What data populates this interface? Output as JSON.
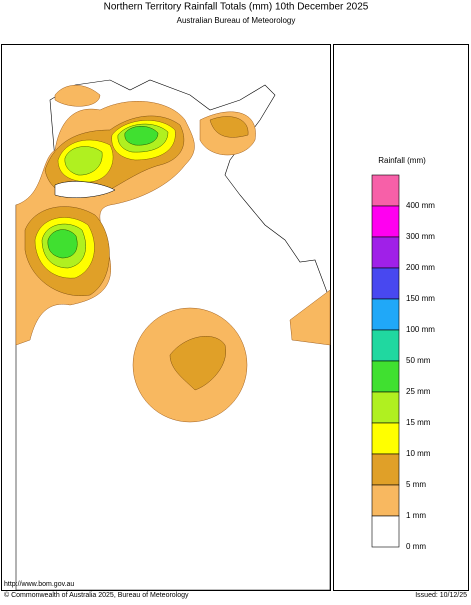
{
  "header": {
    "title": "Northern Territory Rainfall Totals (mm) 10th December 2025",
    "subtitle": "Australian Bureau of Meteorology"
  },
  "legend": {
    "title": "Rainfall (mm)",
    "items": [
      {
        "label": "400 mm",
        "color": "#f760a8"
      },
      {
        "label": "300 mm",
        "color": "#ff00f0"
      },
      {
        "label": "200 mm",
        "color": "#a020e8"
      },
      {
        "label": "150 mm",
        "color": "#4848f0"
      },
      {
        "label": "100 mm",
        "color": "#20a8f8"
      },
      {
        "label": "50 mm",
        "color": "#20d8a0"
      },
      {
        "label": "25 mm",
        "color": "#40e030"
      },
      {
        "label": "15 mm",
        "color": "#b0f020"
      },
      {
        "label": "10 mm",
        "color": "#ffff00"
      },
      {
        "label": "5 mm",
        "color": "#e0a028"
      },
      {
        "label": "1 mm",
        "color": "#f8b860"
      },
      {
        "label": "0 mm",
        "color": "#ffffff"
      }
    ]
  },
  "footer": {
    "url": "http://www.bom.gov.au",
    "copyright": "© Commonwealth of Australia 2025, Bureau of Meteorology",
    "issued": "Issued: 10/12/25"
  }
}
